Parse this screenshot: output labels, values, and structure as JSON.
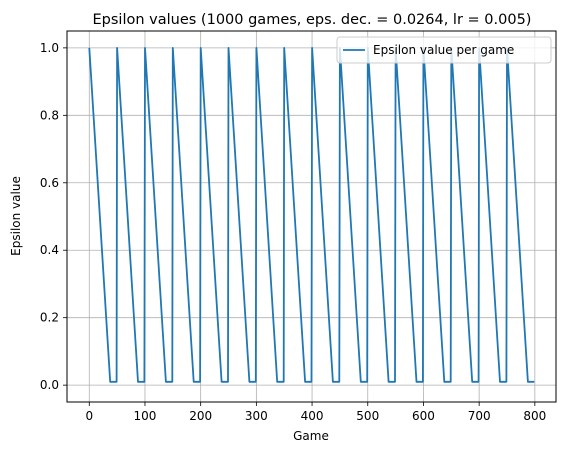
{
  "chart_data": {
    "type": "line",
    "title": "Epsilon values (1000 games, eps. dec. = 0.0264, lr = 0.005)",
    "xlabel": "Game",
    "ylabel": "Epsilon value",
    "xlim": [
      -40,
      838
    ],
    "ylim": [
      -0.05,
      1.05
    ],
    "xticks": [
      0,
      100,
      200,
      300,
      400,
      500,
      600,
      700,
      800
    ],
    "yticks": [
      0.0,
      0.2,
      0.4,
      0.6,
      0.8,
      1.0
    ],
    "ytick_labels": [
      "0.0",
      "0.2",
      "0.4",
      "0.6",
      "0.8",
      "1.0"
    ],
    "grid": true,
    "legend_position": "top-right",
    "series": [
      {
        "name": "Epsilon value per game",
        "color": "#1f77b4",
        "x": [
          0,
          37.5,
          49,
          50,
          87.5,
          99,
          100,
          137.5,
          149,
          150,
          187.5,
          199,
          200,
          237.5,
          249,
          250,
          287.5,
          299,
          300,
          337.5,
          349,
          350,
          387.5,
          399,
          400,
          437.5,
          449,
          450,
          487.5,
          499,
          500,
          537.5,
          549,
          550,
          587.5,
          599,
          600,
          637.5,
          649,
          650,
          687.5,
          699,
          700,
          737.5,
          749,
          750,
          787.5,
          799
        ],
        "y": [
          1.0,
          0.01,
          0.01,
          1.0,
          0.01,
          0.01,
          1.0,
          0.01,
          0.01,
          1.0,
          0.01,
          0.01,
          1.0,
          0.01,
          0.01,
          1.0,
          0.01,
          0.01,
          1.0,
          0.01,
          0.01,
          1.0,
          0.01,
          0.01,
          1.0,
          0.01,
          0.01,
          1.0,
          0.01,
          0.01,
          1.0,
          0.01,
          0.01,
          1.0,
          0.01,
          0.01,
          1.0,
          0.01,
          0.01,
          1.0,
          0.01,
          0.01,
          1.0,
          0.01,
          0.01,
          1.0,
          0.01,
          0.01
        ]
      }
    ]
  }
}
